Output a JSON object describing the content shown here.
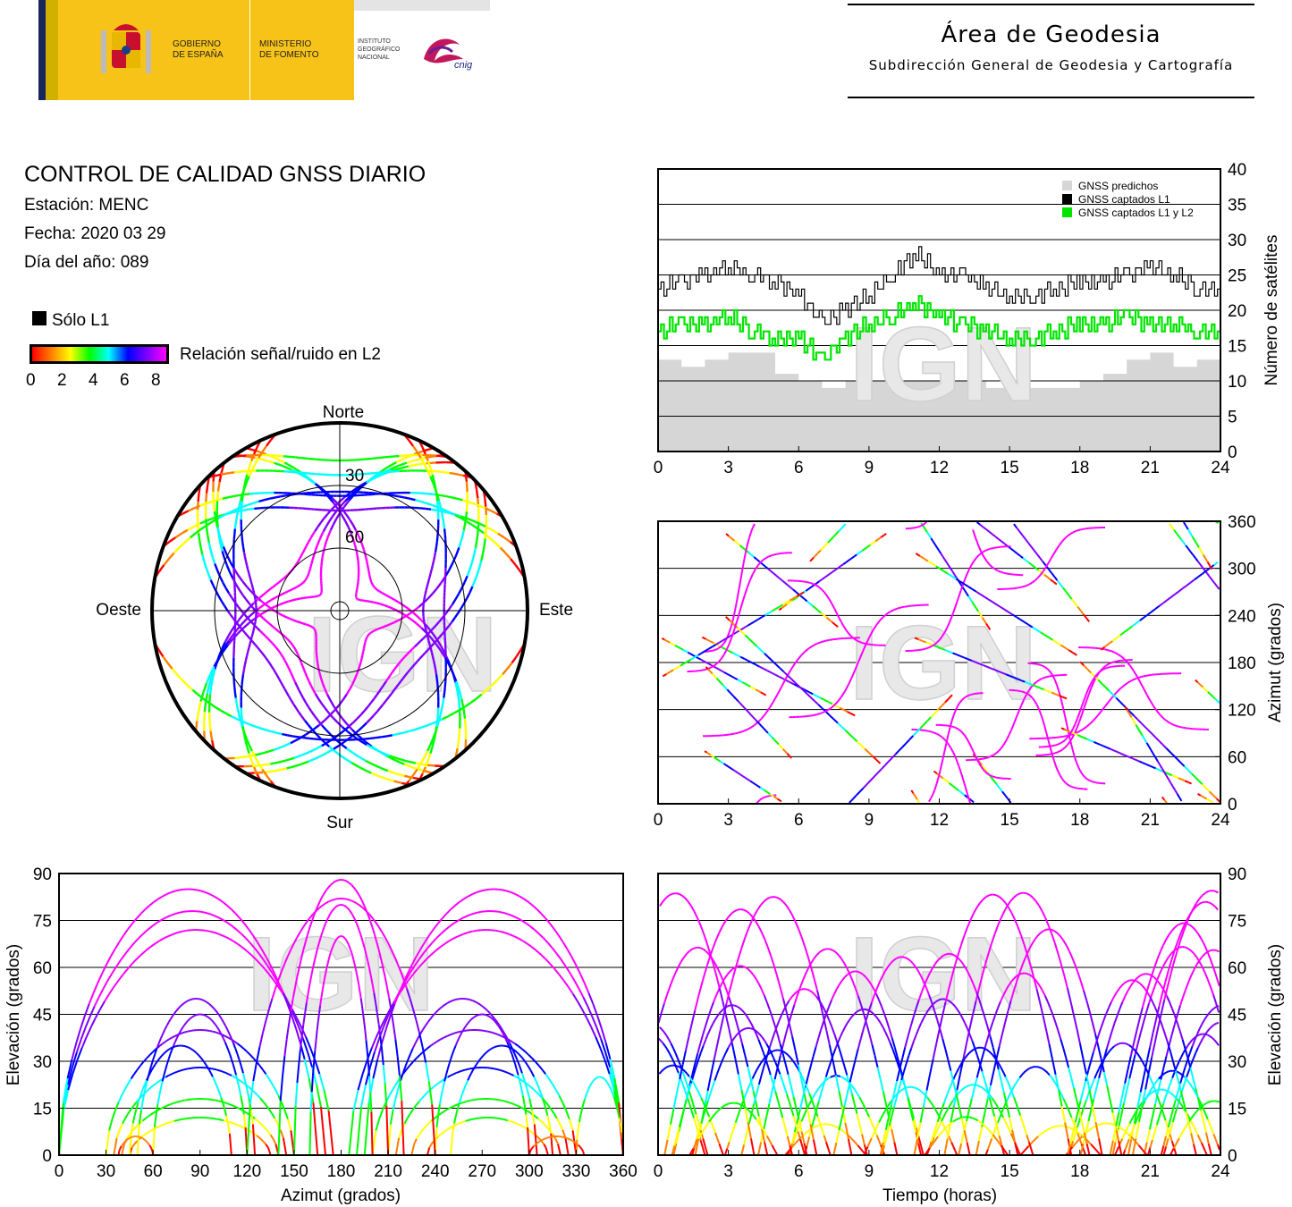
{
  "header": {
    "gov_line1": "GOBIERNO",
    "gov_line2": "DE ESPAÑA",
    "ministry_line1": "MINISTERIO",
    "ministry_line2": "DE FOMENTO",
    "ign_line1": "INSTITUTO",
    "ign_line2": "GEOGRÁFICO",
    "ign_line3": "NACIONAL",
    "cnig": "cnig",
    "area_title": "Área de Geodesia",
    "area_subtitle": "Subdirección General de Geodesia y Cartografía"
  },
  "info": {
    "title": "CONTROL DE CALIDAD GNSS DIARIO",
    "station": "Estación: MENC",
    "date": "Fecha: 2020 03 29",
    "doy": "Día del año: 089"
  },
  "legend": {
    "l1_only": "Sólo L1",
    "snr_label": "Relación señal/ruido en L2",
    "snr_ticks": [
      "0",
      "2",
      "4",
      "6",
      "8"
    ],
    "colors": [
      "#ff0000",
      "#ff8000",
      "#ffff00",
      "#00ff00",
      "#00ffff",
      "#0000ff",
      "#8000ff",
      "#ff00ff"
    ]
  },
  "watermark": "IGN",
  "chart_data": [
    {
      "type": "polar",
      "id": "skyplot",
      "labels": {
        "north": "Norte",
        "south": "Sur",
        "east": "Este",
        "west": "Oeste"
      },
      "rings": [
        30,
        60
      ],
      "ring_labels": [
        "30",
        "60"
      ],
      "colors": {
        "high": "#ff00ff",
        "mid": "#0000ff"
      }
    },
    {
      "type": "line",
      "id": "satellites",
      "xlim": [
        0,
        24
      ],
      "ylim": [
        0,
        40
      ],
      "xticks": [
        "0",
        "3",
        "6",
        "9",
        "12",
        "15",
        "18",
        "21",
        "24"
      ],
      "yticks": [
        "0",
        "5",
        "10",
        "15",
        "20",
        "25",
        "30",
        "35",
        "40"
      ],
      "ylabel": "Número de satélites",
      "legend": [
        "GNSS predichos",
        "GNSS captados L1",
        "GNSS captados L1 y L2"
      ],
      "legend_placement": "top-right",
      "colors": {
        "predicted": "#d6d6d6",
        "l1": "#000000",
        "l1l2": "#00e600"
      },
      "x": [
        0,
        1,
        2,
        3,
        4,
        5,
        6,
        7,
        8,
        9,
        10,
        11,
        12,
        13,
        14,
        15,
        16,
        17,
        18,
        19,
        20,
        21,
        22,
        23,
        24
      ],
      "series": [
        {
          "name": "GNSS predichos",
          "values": [
            13,
            12,
            13,
            14,
            14,
            11,
            10,
            9,
            10,
            10,
            10,
            10,
            10,
            10,
            9,
            9,
            9,
            9,
            10,
            11,
            13,
            14,
            12,
            13,
            14
          ]
        },
        {
          "name": "GNSS captados L1",
          "values": [
            23,
            24,
            25,
            26,
            25,
            24,
            22,
            18,
            20,
            22,
            25,
            28,
            25,
            25,
            23,
            22,
            22,
            23,
            24,
            24,
            25,
            26,
            25,
            23,
            23
          ]
        },
        {
          "name": "GNSS captados L1 y L2",
          "values": [
            17,
            18,
            18,
            19,
            17,
            16,
            16,
            13,
            16,
            18,
            19,
            21,
            19,
            18,
            17,
            16,
            16,
            17,
            18,
            18,
            19,
            18,
            18,
            17,
            17
          ]
        }
      ]
    },
    {
      "type": "scatter",
      "id": "azimuth_time",
      "xlim": [
        0,
        24
      ],
      "ylim": [
        0,
        360
      ],
      "xticks": [
        "0",
        "3",
        "6",
        "9",
        "12",
        "15",
        "18",
        "21",
        "24"
      ],
      "yticks": [
        "0",
        "60",
        "120",
        "180",
        "240",
        "300",
        "360"
      ],
      "ylabel": "Azimut (grados)"
    },
    {
      "type": "scatter",
      "id": "elevation_azimuth",
      "xlim": [
        0,
        360
      ],
      "ylim": [
        0,
        90
      ],
      "xticks": [
        "0",
        "30",
        "60",
        "90",
        "120",
        "150",
        "180",
        "210",
        "240",
        "270",
        "300",
        "330",
        "360"
      ],
      "yticks": [
        "0",
        "15",
        "30",
        "45",
        "60",
        "75",
        "90"
      ],
      "xlabel": "Azimut (grados)",
      "ylabel": "Elevación (grados)"
    },
    {
      "type": "line",
      "id": "elevation_time",
      "xlim": [
        0,
        24
      ],
      "ylim": [
        0,
        90
      ],
      "xticks": [
        "0",
        "3",
        "6",
        "9",
        "12",
        "15",
        "18",
        "21",
        "24"
      ],
      "yticks": [
        "0",
        "15",
        "30",
        "45",
        "60",
        "75",
        "90"
      ],
      "xlabel": "Tiempo (horas)",
      "ylabel": "Elevación (grados)"
    }
  ]
}
